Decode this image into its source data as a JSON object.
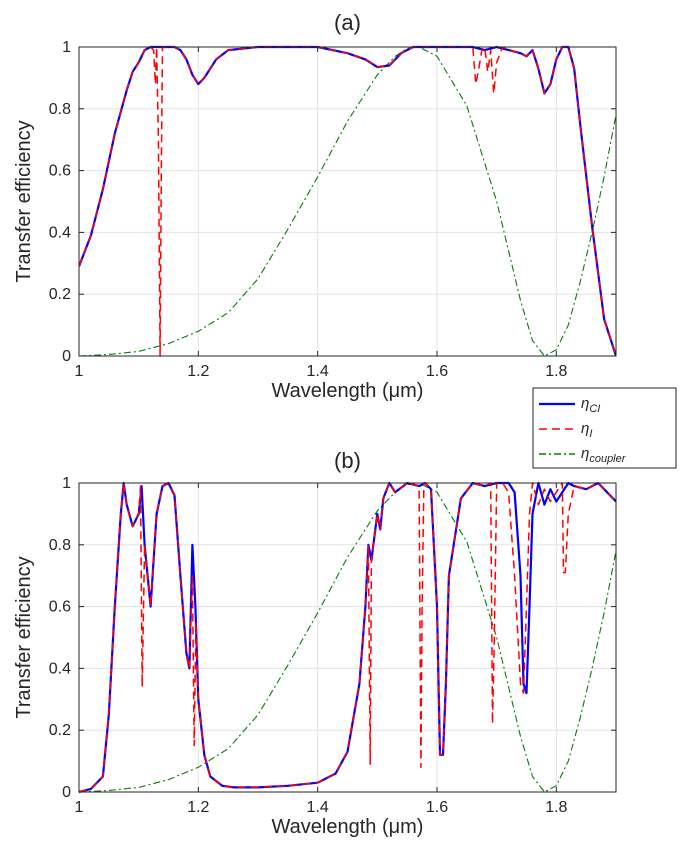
{
  "chart_data": [
    {
      "type": "line",
      "title": "(a)",
      "xlabel": "Wavelength (μm)",
      "ylabel": "Transfer efficiency",
      "xlim": [
        1,
        1.9
      ],
      "ylim": [
        0,
        1
      ],
      "xticks": [
        "1",
        "1.2",
        "1.4",
        "1.6",
        "1.8"
      ],
      "yticks": [
        "0",
        "0.2",
        "0.4",
        "0.6",
        "0.8",
        "1"
      ],
      "grid": true,
      "series": [
        {
          "name": "ηCI",
          "color": "#0000ff",
          "style": "solid",
          "x": [
            1.0,
            1.02,
            1.04,
            1.06,
            1.08,
            1.09,
            1.1,
            1.11,
            1.12,
            1.13,
            1.15,
            1.16,
            1.17,
            1.18,
            1.19,
            1.2,
            1.21,
            1.23,
            1.25,
            1.3,
            1.35,
            1.4,
            1.45,
            1.48,
            1.5,
            1.52,
            1.54,
            1.56,
            1.58,
            1.6,
            1.62,
            1.64,
            1.66,
            1.68,
            1.7,
            1.72,
            1.74,
            1.75,
            1.76,
            1.77,
            1.78,
            1.79,
            1.8,
            1.81,
            1.82,
            1.83,
            1.84,
            1.86,
            1.88,
            1.9
          ],
          "y": [
            0.29,
            0.39,
            0.54,
            0.72,
            0.86,
            0.92,
            0.95,
            0.99,
            1.0,
            1.0,
            1.0,
            1.0,
            0.99,
            0.96,
            0.91,
            0.88,
            0.9,
            0.96,
            0.99,
            1.0,
            1.0,
            1.0,
            0.98,
            0.96,
            0.935,
            0.94,
            0.98,
            1.0,
            1.0,
            1.0,
            1.0,
            1.0,
            1.0,
            0.99,
            1.0,
            0.99,
            0.98,
            0.97,
            0.99,
            0.93,
            0.85,
            0.88,
            0.96,
            1.0,
            1.0,
            0.93,
            0.75,
            0.42,
            0.12,
            0.0
          ]
        },
        {
          "name": "ηI",
          "color": "#ff0000",
          "style": "dashed",
          "x": [
            1.0,
            1.02,
            1.04,
            1.06,
            1.08,
            1.09,
            1.1,
            1.11,
            1.12,
            1.125,
            1.128,
            1.13,
            1.133,
            1.136,
            1.138,
            1.14,
            1.143,
            1.146,
            1.15,
            1.16,
            1.17,
            1.18,
            1.19,
            1.2,
            1.21,
            1.23,
            1.25,
            1.3,
            1.35,
            1.4,
            1.45,
            1.48,
            1.5,
            1.52,
            1.54,
            1.56,
            1.58,
            1.6,
            1.62,
            1.64,
            1.66,
            1.665,
            1.67,
            1.675,
            1.68,
            1.685,
            1.69,
            1.695,
            1.7,
            1.71,
            1.72,
            1.74,
            1.75,
            1.76,
            1.77,
            1.78,
            1.79,
            1.8,
            1.81,
            1.82,
            1.83,
            1.84,
            1.86,
            1.88,
            1.9
          ],
          "y": [
            0.29,
            0.39,
            0.54,
            0.72,
            0.86,
            0.92,
            0.95,
            0.99,
            1.0,
            0.99,
            0.88,
            1.0,
            0.7,
            0.0,
            0.6,
            1.0,
            1.0,
            1.0,
            1.0,
            1.0,
            0.99,
            0.96,
            0.91,
            0.88,
            0.9,
            0.96,
            0.99,
            1.0,
            1.0,
            1.0,
            0.98,
            0.96,
            0.935,
            0.94,
            0.98,
            1.0,
            1.0,
            1.0,
            1.0,
            1.0,
            1.0,
            0.88,
            0.93,
            0.99,
            1.0,
            0.92,
            0.99,
            0.85,
            0.95,
            1.0,
            0.99,
            0.98,
            0.97,
            0.99,
            0.93,
            0.85,
            0.88,
            0.96,
            1.0,
            1.0,
            0.93,
            0.75,
            0.42,
            0.12,
            0.0
          ]
        },
        {
          "name": "ηcoupler",
          "color": "#008000",
          "style": "dashdot",
          "x": [
            1.0,
            1.05,
            1.1,
            1.15,
            1.2,
            1.25,
            1.3,
            1.35,
            1.4,
            1.45,
            1.5,
            1.53,
            1.55,
            1.57,
            1.6,
            1.65,
            1.7,
            1.74,
            1.76,
            1.78,
            1.8,
            1.82,
            1.84,
            1.86,
            1.88,
            1.9
          ],
          "y": [
            0.0,
            0.005,
            0.015,
            0.04,
            0.08,
            0.14,
            0.25,
            0.41,
            0.58,
            0.76,
            0.91,
            0.97,
            0.995,
            1.0,
            0.97,
            0.81,
            0.5,
            0.18,
            0.05,
            0.0,
            0.02,
            0.1,
            0.24,
            0.4,
            0.58,
            0.78
          ]
        }
      ]
    },
    {
      "type": "line",
      "title": "(b)",
      "xlabel": "Wavelength (μm)",
      "ylabel": "Transfer efficiency",
      "xlim": [
        1,
        1.9
      ],
      "ylim": [
        0,
        1
      ],
      "xticks": [
        "1",
        "1.2",
        "1.4",
        "1.6",
        "1.8"
      ],
      "yticks": [
        "0",
        "0.2",
        "0.4",
        "0.6",
        "0.8",
        "1"
      ],
      "grid": true,
      "series": [
        {
          "name": "ηCI",
          "color": "#0000ff",
          "style": "solid",
          "x": [
            1.0,
            1.02,
            1.04,
            1.05,
            1.06,
            1.07,
            1.075,
            1.08,
            1.09,
            1.1,
            1.105,
            1.11,
            1.12,
            1.13,
            1.14,
            1.15,
            1.16,
            1.17,
            1.18,
            1.185,
            1.19,
            1.195,
            1.2,
            1.21,
            1.22,
            1.24,
            1.26,
            1.28,
            1.3,
            1.35,
            1.4,
            1.43,
            1.45,
            1.47,
            1.48,
            1.485,
            1.49,
            1.5,
            1.505,
            1.51,
            1.52,
            1.53,
            1.55,
            1.57,
            1.58,
            1.59,
            1.6,
            1.605,
            1.61,
            1.615,
            1.62,
            1.64,
            1.66,
            1.68,
            1.7,
            1.72,
            1.73,
            1.74,
            1.745,
            1.75,
            1.755,
            1.76,
            1.77,
            1.78,
            1.79,
            1.8,
            1.81,
            1.82,
            1.83,
            1.85,
            1.87,
            1.88,
            1.9
          ],
          "y": [
            0.0,
            0.01,
            0.05,
            0.25,
            0.6,
            0.9,
            1.0,
            0.93,
            0.86,
            0.9,
            0.99,
            0.8,
            0.6,
            0.9,
            0.99,
            1.0,
            0.96,
            0.7,
            0.45,
            0.4,
            0.8,
            0.6,
            0.3,
            0.12,
            0.05,
            0.02,
            0.015,
            0.015,
            0.015,
            0.02,
            0.03,
            0.06,
            0.13,
            0.35,
            0.6,
            0.8,
            0.75,
            0.9,
            0.85,
            0.95,
            1.0,
            0.97,
            1.0,
            0.99,
            1.0,
            0.98,
            0.6,
            0.12,
            0.12,
            0.35,
            0.7,
            0.95,
            1.0,
            0.99,
            1.0,
            1.0,
            0.97,
            0.7,
            0.35,
            0.32,
            0.6,
            0.9,
            1.0,
            0.93,
            0.98,
            0.94,
            0.97,
            1.0,
            0.99,
            0.98,
            1.0,
            0.98,
            0.94
          ]
        },
        {
          "name": "ηI",
          "color": "#ff0000",
          "style": "dashed",
          "x": [
            1.0,
            1.02,
            1.04,
            1.05,
            1.06,
            1.07,
            1.075,
            1.08,
            1.09,
            1.1,
            1.103,
            1.106,
            1.11,
            1.12,
            1.13,
            1.14,
            1.15,
            1.16,
            1.17,
            1.18,
            1.185,
            1.19,
            1.193,
            1.196,
            1.2,
            1.21,
            1.22,
            1.24,
            1.26,
            1.28,
            1.3,
            1.35,
            1.4,
            1.43,
            1.45,
            1.47,
            1.48,
            1.485,
            1.488,
            1.49,
            1.5,
            1.505,
            1.51,
            1.52,
            1.53,
            1.55,
            1.57,
            1.573,
            1.575,
            1.578,
            1.58,
            1.59,
            1.6,
            1.605,
            1.61,
            1.615,
            1.62,
            1.64,
            1.66,
            1.68,
            1.69,
            1.693,
            1.696,
            1.7,
            1.71,
            1.72,
            1.73,
            1.74,
            1.745,
            1.75,
            1.755,
            1.76,
            1.77,
            1.78,
            1.79,
            1.8,
            1.81,
            1.812,
            1.815,
            1.82,
            1.83,
            1.85,
            1.87,
            1.88,
            1.9
          ],
          "y": [
            0.0,
            0.01,
            0.05,
            0.25,
            0.6,
            0.9,
            1.0,
            0.93,
            0.86,
            0.9,
            0.99,
            0.34,
            0.8,
            0.6,
            0.9,
            0.99,
            1.0,
            0.96,
            0.7,
            0.45,
            0.4,
            0.7,
            0.15,
            0.55,
            0.3,
            0.12,
            0.05,
            0.02,
            0.015,
            0.015,
            0.015,
            0.02,
            0.03,
            0.06,
            0.13,
            0.35,
            0.6,
            0.8,
            0.09,
            0.75,
            0.9,
            0.85,
            0.95,
            1.0,
            0.97,
            1.0,
            0.99,
            0.08,
            0.6,
            1.0,
            1.0,
            0.98,
            0.6,
            0.12,
            0.12,
            0.35,
            0.7,
            0.95,
            1.0,
            0.99,
            1.0,
            0.22,
            0.5,
            1.0,
            1.0,
            0.97,
            0.7,
            0.35,
            0.32,
            0.6,
            0.9,
            1.0,
            0.93,
            0.98,
            0.94,
            0.97,
            1.0,
            0.71,
            0.71,
            0.9,
            0.99,
            0.98,
            1.0,
            0.98,
            0.94
          ]
        },
        {
          "name": "ηcoupler",
          "color": "#008000",
          "style": "dashdot",
          "x": [
            1.0,
            1.05,
            1.1,
            1.15,
            1.2,
            1.25,
            1.3,
            1.35,
            1.4,
            1.45,
            1.5,
            1.53,
            1.55,
            1.57,
            1.6,
            1.65,
            1.7,
            1.74,
            1.76,
            1.78,
            1.8,
            1.82,
            1.84,
            1.86,
            1.88,
            1.9
          ],
          "y": [
            0.0,
            0.005,
            0.015,
            0.04,
            0.08,
            0.14,
            0.25,
            0.41,
            0.58,
            0.76,
            0.91,
            0.97,
            0.995,
            1.0,
            0.97,
            0.81,
            0.5,
            0.18,
            0.05,
            0.0,
            0.02,
            0.1,
            0.24,
            0.4,
            0.58,
            0.78
          ]
        }
      ]
    }
  ],
  "legend": {
    "entries": [
      {
        "symbol": "η",
        "sub": "CI",
        "color": "#0000ff",
        "style": "solid"
      },
      {
        "symbol": "η",
        "sub": "I",
        "color": "#ff0000",
        "style": "dashed"
      },
      {
        "symbol": "η",
        "sub": "coupler",
        "color": "#008000",
        "style": "dashdot"
      }
    ]
  }
}
